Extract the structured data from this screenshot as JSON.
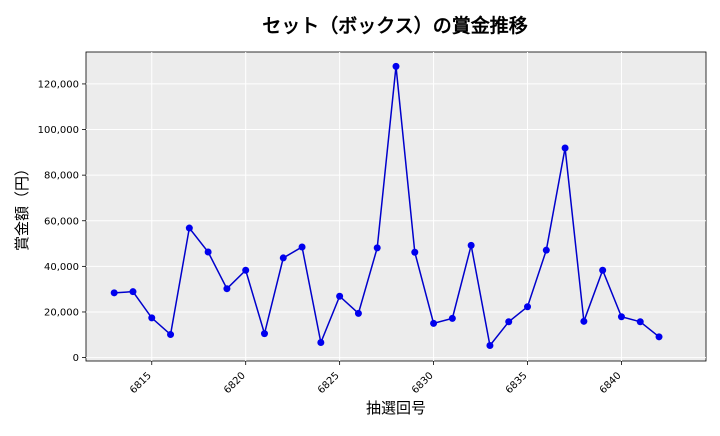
{
  "chart_data": {
    "type": "line",
    "title": "セット（ボックス）の賞金推移",
    "xlabel": "抽選回号",
    "ylabel": "賞金額（円）",
    "x": [
      6813,
      6814,
      6815,
      6816,
      6817,
      6818,
      6819,
      6820,
      6821,
      6822,
      6823,
      6824,
      6825,
      6826,
      6827,
      6828,
      6829,
      6830,
      6831,
      6832,
      6833,
      6834,
      6835,
      6836,
      6837,
      6838,
      6839,
      6840,
      6841,
      6842,
      6843
    ],
    "series": [
      {
        "values": [
          28400,
          28900,
          17400,
          10100,
          56800,
          46300,
          30200,
          38300,
          10500,
          43700,
          48500,
          6600,
          26900,
          19400,
          48100,
          127700,
          46200,
          15000,
          17200,
          49200,
          5300,
          15700,
          22300,
          47100,
          91900,
          15900,
          38300,
          17900,
          15700,
          9100,
          null
        ]
      }
    ],
    "xticks": [
      6815,
      6820,
      6825,
      6830,
      6835,
      6840
    ],
    "xtick_labels": [
      "6815",
      "6820",
      "6825",
      "6830",
      "6835",
      "6840"
    ],
    "yticks": [
      0,
      20000,
      40000,
      60000,
      80000,
      100000,
      120000
    ],
    "ytick_labels": [
      "0",
      "20,000",
      "40,000",
      "60,000",
      "80,000",
      "100,000",
      "120,000"
    ],
    "xlim": [
      6811.5,
      6844.5
    ],
    "ylim": [
      -1500,
      134000
    ],
    "grid": true,
    "line_color": "#0000cc",
    "marker_color": "#0000ee",
    "plot_background": "#ececec"
  }
}
